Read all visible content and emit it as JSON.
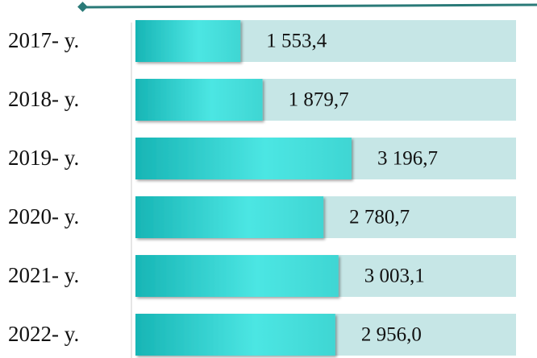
{
  "chart_data": {
    "type": "bar",
    "orientation": "horizontal",
    "categories": [
      "2017- y.",
      "2018- y.",
      "2019- y.",
      "2020- y.",
      "2021- y.",
      "2022- y."
    ],
    "values": [
      1553.4,
      1879.7,
      3196.7,
      2780.7,
      3003.1,
      2956.0
    ],
    "value_labels": [
      "1 553,4",
      "1 879,7",
      "3 196,7",
      "2 780,7",
      "3 003,1",
      "2 956,0"
    ],
    "color": "#4ce6e3",
    "xlim": [
      0,
      5630
    ]
  }
}
